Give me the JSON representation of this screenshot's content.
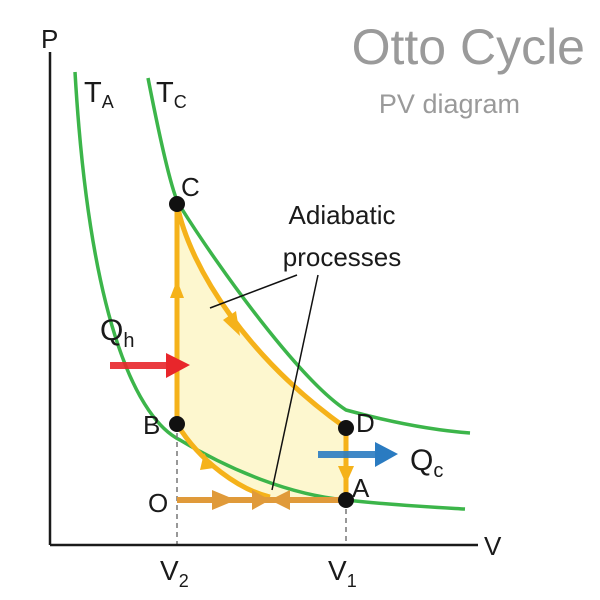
{
  "title": "Otto Cycle",
  "subtitle": "PV diagram",
  "axes": {
    "y_label": "P",
    "x_label": "V"
  },
  "isotherms": [
    {
      "main": "T",
      "sub": "A"
    },
    {
      "main": "T",
      "sub": "C"
    }
  ],
  "points": {
    "A": "A",
    "B": "B",
    "C": "C",
    "D": "D",
    "O": "O"
  },
  "volume_ticks": [
    {
      "main": "V",
      "sub": "2"
    },
    {
      "main": "V",
      "sub": "1"
    }
  ],
  "heat": [
    {
      "main": "Q",
      "sub": "h"
    },
    {
      "main": "Q",
      "sub": "c"
    }
  ],
  "annotation": {
    "line1": "Adiabatic",
    "line2": "processes"
  },
  "colors": {
    "isotherm": "#3cb54a",
    "cycle": "#f5b21a",
    "fill": "#fdf7cf",
    "intake": "#e09a3a",
    "heat_in": "#e8262b",
    "heat_out": "#2a7bc1",
    "axis": "#1a1a1a",
    "title": "#9a9a9a"
  }
}
